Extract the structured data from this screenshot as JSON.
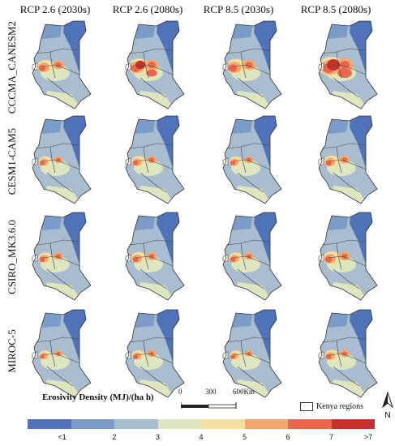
{
  "columns": [
    "RCP 2.6 (2030s)",
    "RCP 2.6 (2080s)",
    "RCP 8.5 (2030s)",
    "RCP 8.5 (2080s)"
  ],
  "rows": [
    "CCCMA_CANESM2",
    "CESM1-CAM5",
    "CSIRO_MK3.6.0",
    "MIROC-5"
  ],
  "legend": {
    "title": "Erosivity Density (MJ)/(ha h)",
    "ticks": [
      "<1",
      "2",
      "3",
      "4",
      "5",
      "6",
      "7",
      ">7"
    ],
    "colors": [
      "#4f72b8",
      "#7b9cc9",
      "#a8bdcf",
      "#dde6bf",
      "#f5dfa0",
      "#f3a76e",
      "#e8674a",
      "#c8302c"
    ],
    "regions_label": "Kenya regions"
  },
  "scalebar": {
    "labels": [
      "0",
      "300",
      "600"
    ],
    "unit": "Km"
  },
  "north_label": "N",
  "intensity": [
    [
      0.55,
      0.75,
      0.7,
      1.0
    ],
    [
      0.35,
      0.4,
      0.35,
      0.45
    ],
    [
      0.4,
      0.45,
      0.4,
      0.55
    ],
    [
      0.3,
      0.35,
      0.3,
      0.4
    ]
  ]
}
